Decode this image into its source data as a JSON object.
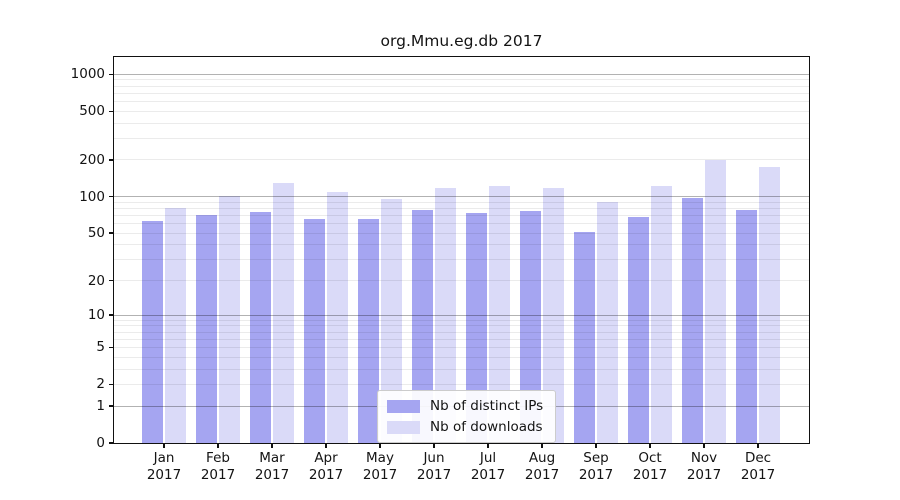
{
  "title": "org.Mmu.eg.db 2017",
  "chart_data": {
    "type": "bar",
    "title": "org.Mmu.eg.db 2017",
    "yscale": "log(1+x)",
    "ylabel": "",
    "xlabel": "",
    "yticks": [
      0,
      1,
      2,
      5,
      10,
      20,
      50,
      100,
      200,
      500,
      1000
    ],
    "ylim": [
      0,
      1380
    ],
    "grid": "minor-and-major-horizontal",
    "legend_position": "inside-bottom-center",
    "categories": [
      "Jan",
      "Feb",
      "Mar",
      "Apr",
      "May",
      "Jun",
      "Jul",
      "Aug",
      "Sep",
      "Oct",
      "Nov",
      "Dec"
    ],
    "year": "2017",
    "series": [
      {
        "name": "Nb of distinct IPs",
        "color": "#a5a5f1",
        "values": [
          63,
          71,
          75,
          65,
          66,
          78,
          73,
          76,
          51,
          68,
          97,
          78
        ]
      },
      {
        "name": "Nb of downloads",
        "color": "#dadaf8",
        "values": [
          81,
          101,
          130,
          109,
          96,
          117,
          122,
          119,
          90,
          122,
          199,
          175
        ]
      }
    ]
  }
}
